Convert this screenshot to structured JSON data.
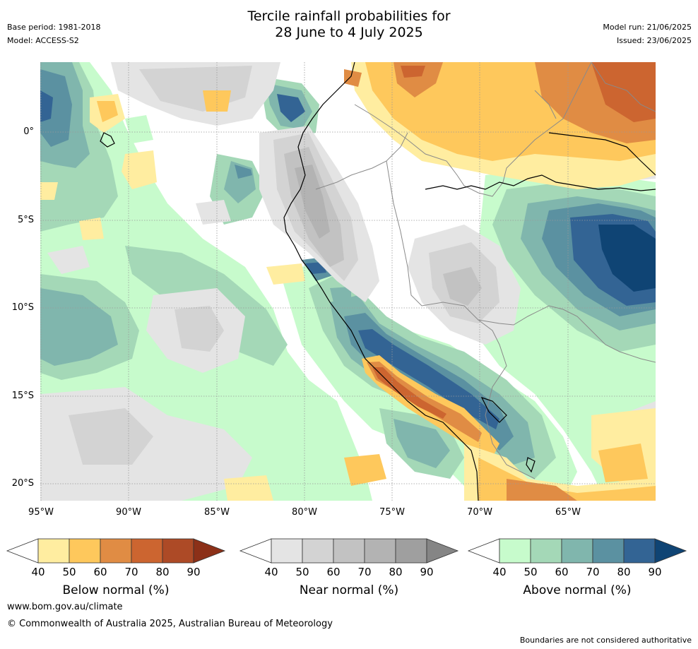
{
  "header": {
    "title_line1": "Tercile rainfall probabilities for",
    "title_line2": "28 June to 4 July 2025",
    "base_period": "Base period: 1981-2018",
    "model": "Model: ACCESS-S2",
    "model_run": "Model run: 21/06/2025",
    "issued": "Issued: 23/06/2025"
  },
  "map": {
    "lat_labels": [
      "0°",
      "5°S",
      "10°S",
      "15°S",
      "20°S"
    ],
    "lon_labels": [
      "95°W",
      "90°W",
      "85°W",
      "80°W",
      "75°W",
      "70°W",
      "65°W"
    ],
    "grid_lines": true,
    "region": "South America - Peru, Ecuador, western Brazil, Bolivia",
    "colors": {
      "below": [
        "#ffeda0",
        "#fec85c",
        "#e08c44",
        "#cc6530",
        "#ad4a26",
        "#8c3018"
      ],
      "near": [
        "#e4e4e4",
        "#d3d3d3",
        "#c2c2c2",
        "#b3b3b3",
        "#9f9f9f",
        "#858585"
      ],
      "above": [
        "#c7fbcc",
        "#a4d8b7",
        "#80b6ad",
        "#5b91a1",
        "#336494",
        "#0f4474"
      ]
    }
  },
  "colorbars": [
    {
      "title": "Below normal (%)",
      "ticks": [
        "40",
        "50",
        "60",
        "70",
        "80",
        "90"
      ]
    },
    {
      "title": "Near normal (%)",
      "ticks": [
        "40",
        "50",
        "60",
        "70",
        "80",
        "90"
      ]
    },
    {
      "title": "Above normal (%)",
      "ticks": [
        "40",
        "50",
        "60",
        "70",
        "80",
        "90"
      ]
    }
  ],
  "footer": {
    "website": "www.bom.gov.au/climate",
    "copyright": "© Commonwealth of Australia 2025, Australian Bureau of Meteorology",
    "disclaimer": "Boundaries are not considered authoritative"
  }
}
